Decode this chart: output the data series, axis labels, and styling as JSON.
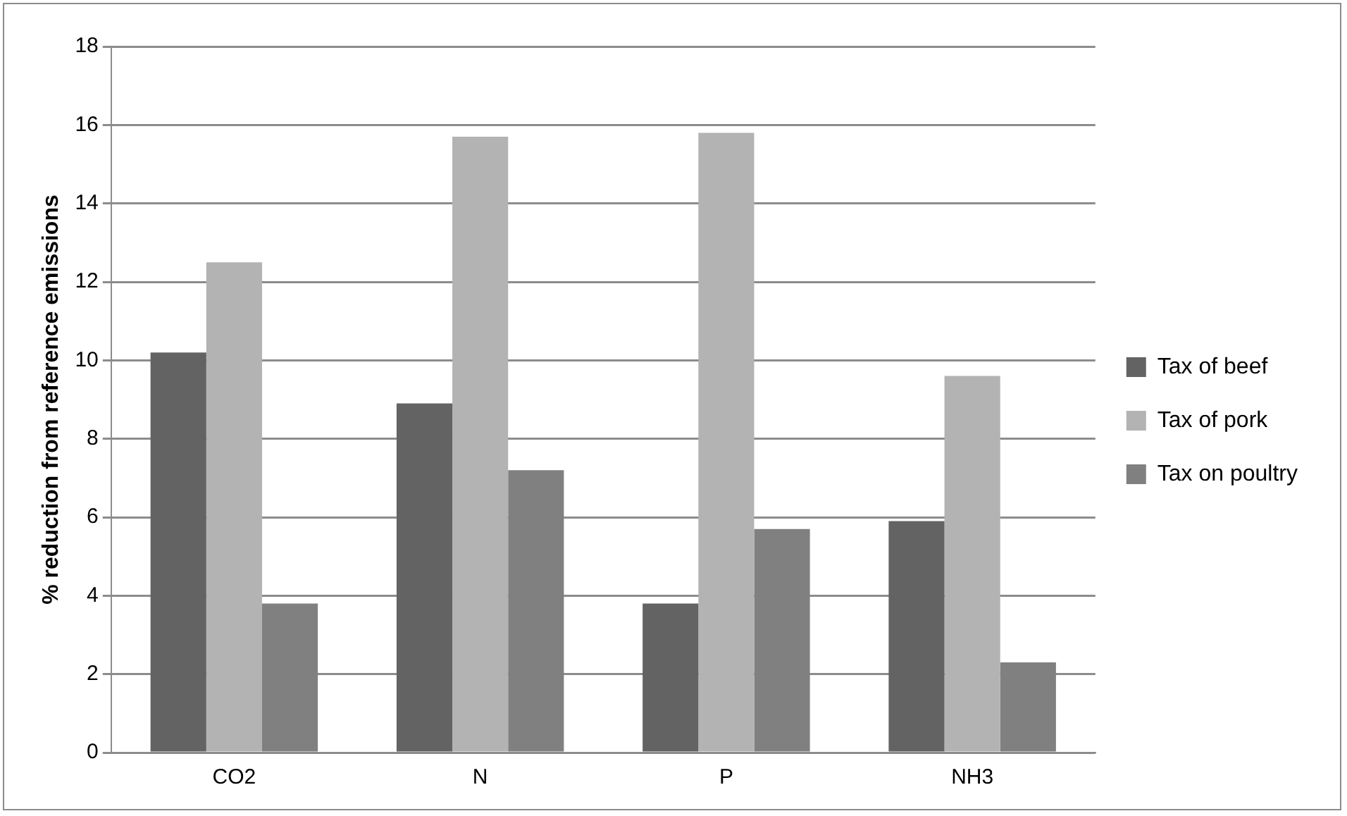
{
  "chart_data": {
    "type": "bar",
    "ylabel": "% reduction from reference emissions",
    "categories": [
      "CO2",
      "N",
      "P",
      "NH3"
    ],
    "series": [
      {
        "name": "Tax of beef",
        "color": "#636363",
        "values": [
          10.2,
          8.9,
          3.8,
          5.9
        ]
      },
      {
        "name": "Tax of pork",
        "color": "#b3b3b3",
        "values": [
          12.5,
          15.7,
          15.8,
          9.6
        ]
      },
      {
        "name": "Tax on poultry",
        "color": "#808080",
        "values": [
          3.8,
          7.2,
          5.7,
          2.3
        ]
      }
    ],
    "ylim": [
      0,
      18
    ],
    "yticks": [
      0,
      2,
      4,
      6,
      8,
      10,
      12,
      14,
      16,
      18
    ],
    "grid": "y",
    "legend": "right"
  }
}
